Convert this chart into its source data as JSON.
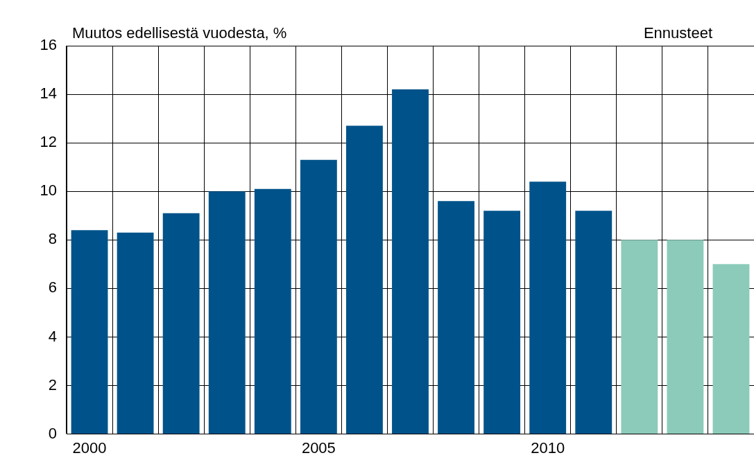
{
  "chart_data": {
    "type": "bar",
    "ylabel": "Muutos edellisestä vuodesta, %",
    "categories": [
      "2000",
      null,
      null,
      null,
      null,
      "2005",
      null,
      null,
      null,
      null,
      "2010",
      null,
      null,
      null,
      null
    ],
    "values": [
      8.4,
      8.3,
      9.1,
      10.0,
      10.1,
      11.3,
      12.7,
      14.2,
      9.6,
      9.2,
      10.4,
      9.2,
      8.0,
      8.0,
      7.0
    ],
    "colors": [
      "#00538a",
      "#00538a",
      "#00538a",
      "#00538a",
      "#00538a",
      "#00538a",
      "#00538a",
      "#00538a",
      "#00538a",
      "#00538a",
      "#00538a",
      "#00538a",
      "#8ccbb9",
      "#8ccbb9",
      "#8ccbb9"
    ],
    "ylim": [
      0,
      16
    ],
    "yticks": [
      0,
      2,
      4,
      6,
      8,
      10,
      12,
      14,
      16
    ],
    "grid": true,
    "legend": false,
    "annotations": [
      "Ennusteet"
    ]
  }
}
